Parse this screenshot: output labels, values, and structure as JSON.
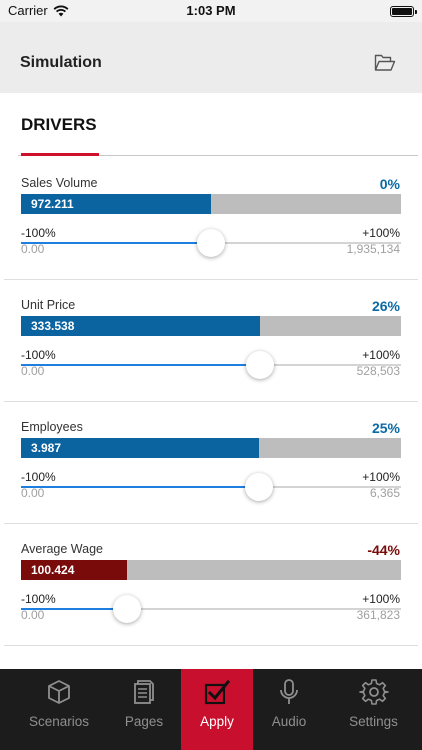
{
  "status_bar": {
    "carrier": "Carrier",
    "time": "1:03 PM"
  },
  "nav": {
    "title": "Simulation",
    "folder_icon": "folder-icon"
  },
  "section": {
    "label": "DRIVERS"
  },
  "colors": {
    "accent": "#d0112b",
    "positive_bar": "#0b63a0",
    "negative_bar": "#7a0b0b",
    "positive_text": "#0b6aa5",
    "negative_text": "#7a0b0b",
    "slider": "#1e7fe0"
  },
  "drivers": [
    {
      "name": "Sales Volume",
      "percent": "0%",
      "bar_value": "972.211",
      "bar_fill": 0.5,
      "negative": false,
      "min": "-100%",
      "max": "+100%",
      "slider_level": 0.5,
      "base": "0.00",
      "total": "1,935,134"
    },
    {
      "name": "Unit Price",
      "percent": "26%",
      "bar_value": "333.538",
      "bar_fill": 0.63,
      "negative": false,
      "min": "-100%",
      "max": "+100%",
      "slider_level": 0.63,
      "base": "0.00",
      "total": "528,503"
    },
    {
      "name": "Employees",
      "percent": "25%",
      "bar_value": "3.987",
      "bar_fill": 0.626,
      "negative": false,
      "min": "-100%",
      "max": "+100%",
      "slider_level": 0.625,
      "base": "0.00",
      "total": "6,365"
    },
    {
      "name": "Average Wage",
      "percent": "-44%",
      "bar_value": "100.424",
      "bar_fill": 0.28,
      "negative": true,
      "min": "-100%",
      "max": "+100%",
      "slider_level": 0.28,
      "base": "0.00",
      "total": "361,823"
    }
  ],
  "tabs": [
    {
      "label": "Scenarios",
      "icon": "cube-icon",
      "active": false
    },
    {
      "label": "Pages",
      "icon": "pages-icon",
      "active": false
    },
    {
      "label": "Apply",
      "icon": "checkbox-icon",
      "active": true
    },
    {
      "label": "Audio",
      "icon": "microphone-icon",
      "active": false
    },
    {
      "label": "Settings",
      "icon": "gear-icon",
      "active": false
    }
  ]
}
